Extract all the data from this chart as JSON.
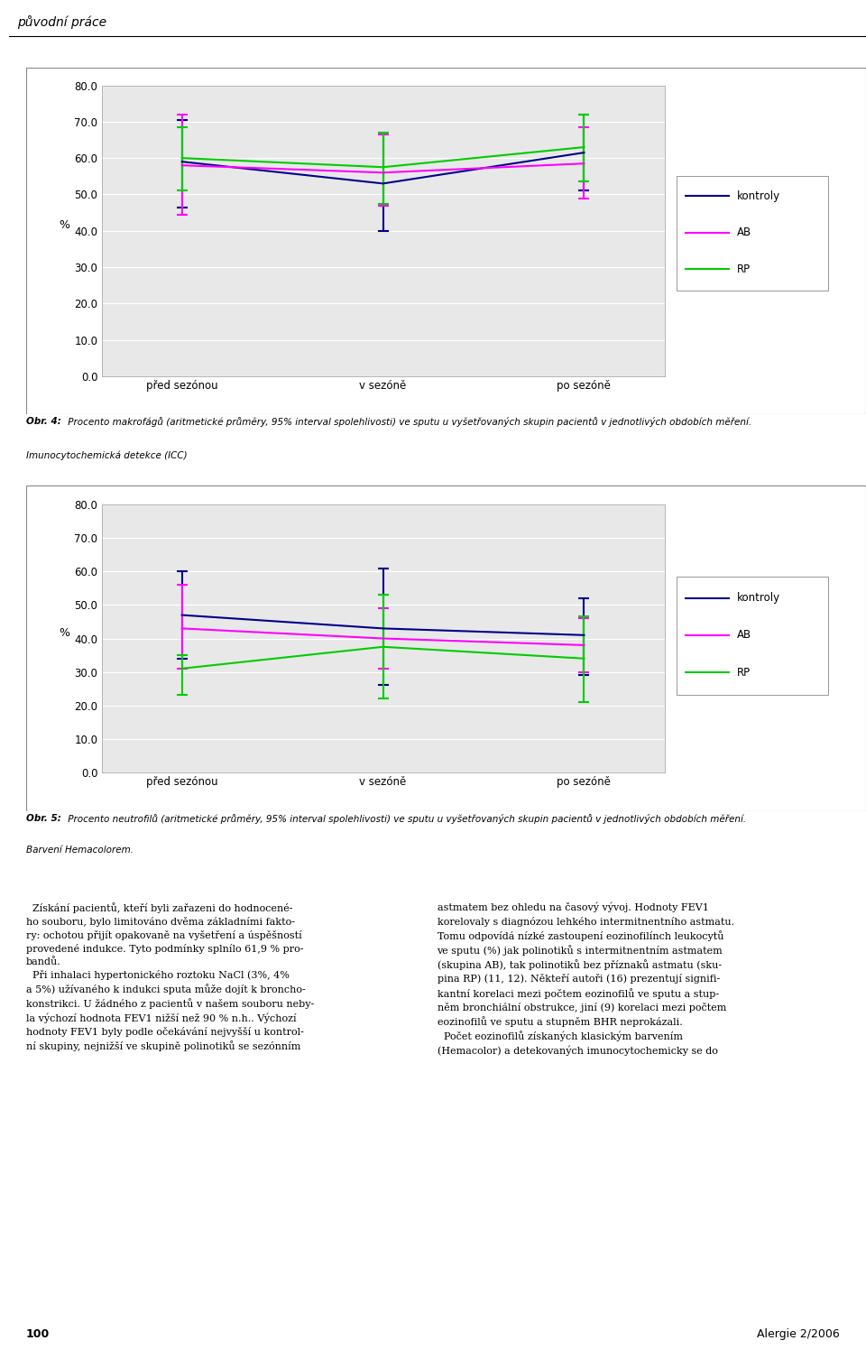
{
  "chart1": {
    "ylabel": "%",
    "xtick_labels": [
      "před sezónou",
      "v sezóně",
      "po sezóně"
    ],
    "yticks": [
      0.0,
      10.0,
      20.0,
      30.0,
      40.0,
      50.0,
      60.0,
      70.0,
      80.0
    ],
    "ylim": [
      0.0,
      80.0
    ],
    "series": {
      "kontroly": {
        "color": "#00008B",
        "means": [
          59.0,
          53.0,
          61.5
        ],
        "ci_low": [
          46.5,
          40.0,
          51.0
        ],
        "ci_high": [
          70.5,
          67.0,
          72.0
        ]
      },
      "AB": {
        "color": "#FF00FF",
        "means": [
          58.0,
          56.0,
          58.5
        ],
        "ci_low": [
          44.5,
          47.0,
          49.0
        ],
        "ci_high": [
          72.0,
          66.5,
          68.5
        ]
      },
      "RP": {
        "color": "#00CC00",
        "means": [
          60.0,
          57.5,
          63.0
        ],
        "ci_low": [
          51.0,
          47.5,
          53.5
        ],
        "ci_high": [
          68.5,
          67.0,
          72.0
        ]
      }
    }
  },
  "chart2": {
    "ylabel": "%",
    "xtick_labels": [
      "před sezónou",
      "v sezóně",
      "po sezóně"
    ],
    "yticks": [
      0.0,
      10.0,
      20.0,
      30.0,
      40.0,
      50.0,
      60.0,
      70.0,
      80.0
    ],
    "ylim": [
      0.0,
      80.0
    ],
    "series": {
      "kontroly": {
        "color": "#00008B",
        "means": [
          47.0,
          43.0,
          41.0
        ],
        "ci_low": [
          34.0,
          26.0,
          29.0
        ],
        "ci_high": [
          60.0,
          61.0,
          52.0
        ]
      },
      "AB": {
        "color": "#FF00FF",
        "means": [
          43.0,
          40.0,
          38.0
        ],
        "ci_low": [
          31.0,
          31.0,
          30.0
        ],
        "ci_high": [
          56.0,
          49.0,
          46.0
        ]
      },
      "RP": {
        "color": "#00CC00",
        "means": [
          31.0,
          37.5,
          34.0
        ],
        "ci_low": [
          23.0,
          22.0,
          21.0
        ],
        "ci_high": [
          35.0,
          53.0,
          46.5
        ]
      }
    }
  },
  "legend_names": [
    "kontroly",
    "AB",
    "RP"
  ],
  "caption1_bold": "Obr. 4:",
  "caption1_rest": " Procento makrofágů (aritmetické průměry, 95% interval spolehlivosti) ve sputu u vyšetřovaných skupin pacientů v jednotlivých obdobích měření.",
  "caption1_line2": "Imunocytochemická detekce (ICC)",
  "caption2_bold": "Obr. 5:",
  "caption2_rest": " Procento neutrofilů (aritmetické průměry, 95% interval spolehlivosti) ve sputu u vyšetřovaných skupin pacientů v jednotlivých obdobích měření.",
  "caption2_line2": "Barvení Hemacolorem.",
  "header": "původní práce",
  "page_number": "100",
  "journal": "Alergie 2/2006",
  "body_left": [
    "  Získání pacientů, kteří byli zařazeni do hodnocené-",
    "ho souboru, bylo limitováno dvěma základními fakto-",
    "ry: ochotou přijít opakovaně na vyšetření a úspěšností",
    "provedené indukce. Tyto podmínky splnílo 61,9 % pro-",
    "bandů.",
    "  Při inhalaci hypertonického roztoku NaCl (3%, 4%",
    "a 5%) užívaného k indukci sputa může dojít k broncho-",
    "konstrikci. U žádného z pacientů v našem souboru neby-",
    "la výchozí hodnota FEV1 nižší než 90 % n.h.. Výchozí",
    "hodnoty FEV1 byly podle očekávání nejvyšší u kontrol-",
    "ní skupiny, nejnižší ve skupině polinotiků se sezónním"
  ],
  "body_right": [
    "astmatem bez ohledu na časový vývoj. Hodnoty FEV1",
    "korelovaly s diagnózou lehkého intermitnentního astmatu.",
    "Tomu odpovídá nízké zastoupení eozinofilínch leukocytů",
    "ve sputu (%) jak polinotiků s intermitnentním astmatem",
    "(skupina AB), tak polinotiků bez příznaků astmatu (sku-",
    "pina RP) (11, 12). Někteří autoři (16) prezentují signifi-",
    "kantní korelaci mezi počtem eozinofilů ve sputu a stup-",
    "něm bronchiální obstrukce, jiní (9) korelaci mezi počtem",
    "eozinofilů ve sputu a stupněm BHR neprokázali.",
    "  Počet eozinofilů získaných klasickým barvením",
    "(Hemacolor) a detekovaných imunocytochemicky se do"
  ],
  "bold_word": "eozinofilů"
}
